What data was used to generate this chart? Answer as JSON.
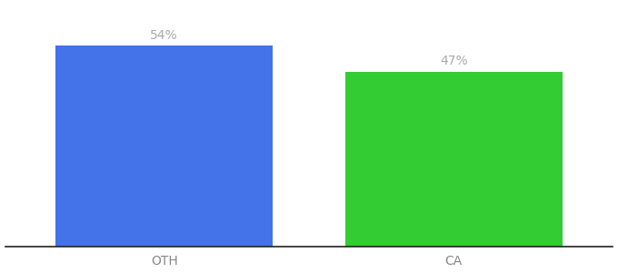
{
  "categories": [
    "OTH",
    "CA"
  ],
  "values": [
    54,
    47
  ],
  "bar_colors": [
    "#4472e8",
    "#33cc33"
  ],
  "value_labels": [
    "54%",
    "47%"
  ],
  "background_color": "#ffffff",
  "ylim": [
    0,
    65
  ],
  "bar_width": 0.75,
  "label_fontsize": 10,
  "tick_fontsize": 10,
  "label_color": "#aaaaaa",
  "tick_color": "#888888",
  "spine_color": "#222222"
}
